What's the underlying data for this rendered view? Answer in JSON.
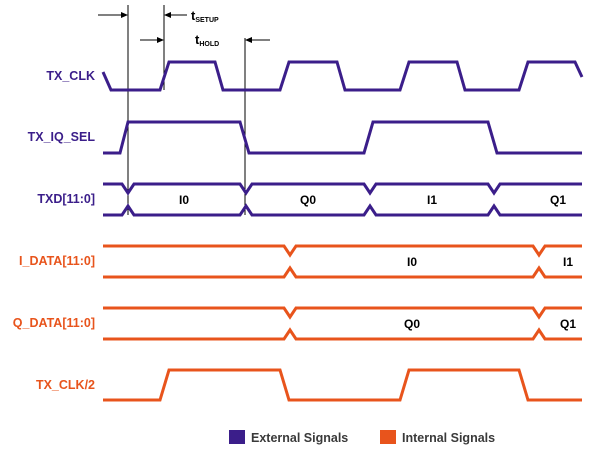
{
  "colors": {
    "external": "#3b1e8a",
    "internal": "#e8541c",
    "annotation": "#000000",
    "legend_text": "#3a3a3a"
  },
  "annotations": {
    "t_setup_main": "t",
    "t_setup_sub": "SETUP",
    "t_hold_main": "t",
    "t_hold_sub": "HOLD"
  },
  "signals": {
    "tx_clk": "TX_CLK",
    "tx_iq_sel": "TX_IQ_SEL",
    "txd": "TXD[11:0]",
    "i_data": "I_DATA[11:0]",
    "q_data": "Q_DATA[11:0]",
    "tx_clk_div2": "TX_CLK/2"
  },
  "bus_values": {
    "txd": [
      "I0",
      "Q0",
      "I1",
      "Q1"
    ],
    "i_data": [
      "I0",
      "I1"
    ],
    "q_data": [
      "Q0",
      "Q1"
    ]
  },
  "legend": {
    "external": "External Signals",
    "internal": "Internal Signals"
  }
}
